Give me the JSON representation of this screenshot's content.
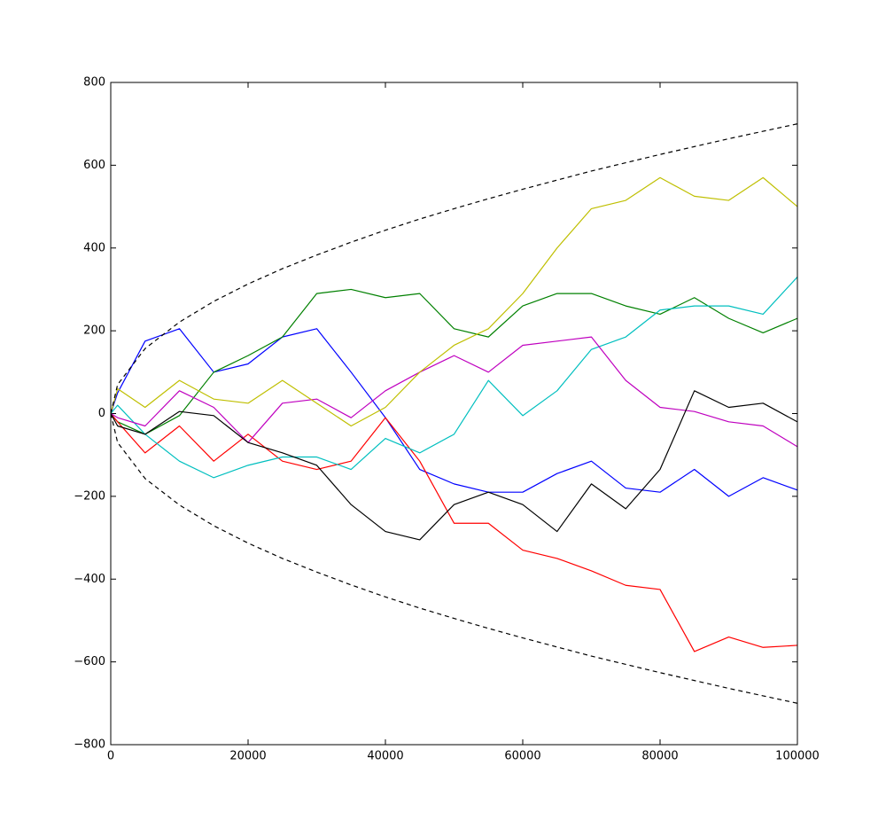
{
  "chart_data": {
    "type": "line",
    "x": [
      0,
      1000,
      5000,
      10000,
      15000,
      20000,
      25000,
      30000,
      35000,
      40000,
      45000,
      50000,
      55000,
      60000,
      65000,
      70000,
      75000,
      80000,
      85000,
      90000,
      95000,
      100000
    ],
    "series": [
      {
        "color": "#0000ff",
        "values": [
          0,
          50,
          175,
          205,
          100,
          120,
          185,
          205,
          100,
          -10,
          -135,
          -170,
          -190,
          -190,
          -145,
          -115,
          -180,
          -190,
          -135,
          -200,
          -155,
          -185
        ]
      },
      {
        "color": "#008000",
        "values": [
          0,
          -20,
          -50,
          -5,
          100,
          140,
          185,
          290,
          300,
          280,
          290,
          205,
          185,
          260,
          290,
          290,
          260,
          240,
          280,
          230,
          195,
          230
        ]
      },
      {
        "color": "#ff0000",
        "values": [
          0,
          -20,
          -95,
          -30,
          -115,
          -50,
          -115,
          -135,
          -115,
          -10,
          -115,
          -265,
          -265,
          -330,
          -350,
          -380,
          -415,
          -425,
          -575,
          -540,
          -565,
          -560
        ]
      },
      {
        "color": "#00bfbf",
        "values": [
          0,
          20,
          -50,
          -115,
          -155,
          -125,
          -105,
          -105,
          -135,
          -60,
          -95,
          -50,
          80,
          -5,
          55,
          155,
          185,
          250,
          260,
          260,
          240,
          330
        ]
      },
      {
        "color": "#bf00bf",
        "values": [
          0,
          -10,
          -30,
          55,
          15,
          -70,
          25,
          35,
          -10,
          55,
          100,
          140,
          100,
          165,
          175,
          185,
          80,
          15,
          5,
          -20,
          -30,
          -80
        ]
      },
      {
        "color": "#bfbf00",
        "values": [
          0,
          60,
          15,
          80,
          35,
          25,
          80,
          25,
          -30,
          15,
          100,
          165,
          205,
          290,
          400,
          495,
          515,
          570,
          525,
          515,
          570,
          500
        ]
      },
      {
        "color": "#000000",
        "values": [
          0,
          -30,
          -50,
          5,
          -5,
          -70,
          -95,
          -125,
          -220,
          -285,
          -305,
          -220,
          -190,
          -220,
          -285,
          -170,
          -230,
          -135,
          55,
          15,
          25,
          -20
        ]
      },
      {
        "color": "#000000",
        "dashed": true,
        "values": [
          0,
          70,
          157,
          221,
          271,
          313,
          350,
          383,
          414,
          443,
          470,
          495,
          519,
          542,
          564,
          586,
          606,
          626,
          645,
          664,
          682,
          700
        ]
      },
      {
        "color": "#000000",
        "dashed": true,
        "values": [
          0,
          -70,
          -157,
          -221,
          -271,
          -313,
          -350,
          -383,
          -414,
          -443,
          -470,
          -495,
          -519,
          -542,
          -564,
          -586,
          -606,
          -626,
          -645,
          -664,
          -682,
          -700
        ]
      }
    ],
    "xlim": [
      0,
      100000
    ],
    "xticks": [
      0,
      20000,
      40000,
      60000,
      80000,
      100000
    ],
    "ylim": [
      -800,
      800
    ],
    "yticks": [
      {
        "value": -800,
        "label": "−800"
      },
      {
        "value": -600,
        "label": "−600"
      },
      {
        "value": -400,
        "label": "−400"
      },
      {
        "value": -200,
        "label": "−200"
      },
      0,
      200,
      400,
      600,
      800
    ],
    "grid": false
  }
}
